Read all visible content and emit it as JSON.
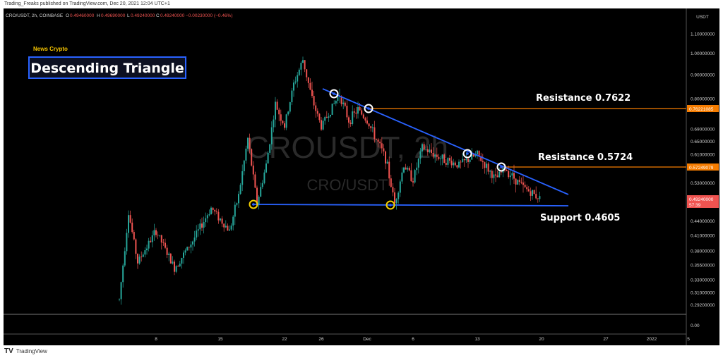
{
  "header": {
    "published_text": "Trading_Freaks published on TradingView.com, Dec 20, 2021 12:04 UTC+1"
  },
  "legend": {
    "symbol_line": "CRO/USDT, 2h, COINBASE",
    "o_label": "O",
    "o_value": "0.49460000",
    "h_label": "H",
    "h_value": "0.49690000",
    "l_label": "L",
    "l_value": "0.49240000",
    "c_label": "C",
    "c_value": "0.49240000",
    "change": "−0.00230000 (−0.46%)"
  },
  "annotations": {
    "source": "News Crypto",
    "pattern_title": "Descending Triangle",
    "resistance1": "Resistance 0.7622",
    "resistance2": "Resistance 0.5724",
    "support": "Support 0.4605"
  },
  "watermark": {
    "big": "CROUSDT, 2h",
    "small": "CRO/USDT"
  },
  "price_axis": {
    "currency": "USDT",
    "ticks": [
      "1.10000000",
      "1.00000000",
      "0.90000000",
      "0.80000000",
      "0.69000000",
      "0.65000000",
      "0.61000000",
      "0.53000000",
      "0.44000000",
      "0.41000000",
      "0.38000000",
      "0.35500000",
      "0.33000000",
      "0.31000000",
      "0.29200000"
    ],
    "zero_label": "0.00",
    "last_price_label": "0.49240000",
    "countdown": "57:39",
    "resistance1_label": "0.76221085",
    "resistance2_label": "0.57249079"
  },
  "time_axis": {
    "ticks": [
      "8",
      "15",
      "22",
      "26",
      "Dec",
      "6",
      "13",
      "20",
      "27",
      "2022",
      "5"
    ]
  },
  "footer": {
    "brand": "TradingView"
  },
  "colors": {
    "background": "#000000",
    "up": "#26a69a",
    "down": "#ef5350",
    "trendline": "#2962ff",
    "resistance": "#f57c00",
    "support_marker": "#f5d000",
    "text": "#ffffff",
    "accent_yellow": "#f5c400"
  },
  "chart_data": {
    "type": "candlestick",
    "pattern": "Descending Triangle",
    "y_scale": "log",
    "resistance_levels": [
      0.7622,
      0.5724
    ],
    "support_level": 0.4605,
    "last_price": 0.4924,
    "path": [
      [
        "Nov 4",
        0.3
      ],
      [
        "Nov 5",
        0.46
      ],
      [
        "Nov 6",
        0.36
      ],
      [
        "Nov 8",
        0.42
      ],
      [
        "Nov 10",
        0.35
      ],
      [
        "Nov 12",
        0.4
      ],
      [
        "Nov 14",
        0.47
      ],
      [
        "Nov 16",
        0.42
      ],
      [
        "Nov 17",
        0.5
      ],
      [
        "Nov 18",
        0.66
      ],
      [
        "Nov 19",
        0.48
      ],
      [
        "Nov 20",
        0.58
      ],
      [
        "Nov 21",
        0.78
      ],
      [
        "Nov 22",
        0.7
      ],
      [
        "Nov 23",
        0.86
      ],
      [
        "Nov 24",
        0.97
      ],
      [
        "Nov 25",
        0.8
      ],
      [
        "Nov 26",
        0.7
      ],
      [
        "Nov 28",
        0.82
      ],
      [
        "Nov 29",
        0.72
      ],
      [
        "Nov 30",
        0.76
      ],
      [
        "Dec 1",
        0.72
      ],
      [
        "Dec 3",
        0.6
      ],
      [
        "Dec 4",
        0.48
      ],
      [
        "Dec 5",
        0.58
      ],
      [
        "Dec 6",
        0.54
      ],
      [
        "Dec 7",
        0.63
      ],
      [
        "Dec 9",
        0.6
      ],
      [
        "Dec 11",
        0.58
      ],
      [
        "Dec 13",
        0.61
      ],
      [
        "Dec 15",
        0.54
      ],
      [
        "Dec 16",
        0.57
      ],
      [
        "Dec 18",
        0.52
      ],
      [
        "Dec 20",
        0.49
      ]
    ],
    "touch_points_resistance": [
      [
        "Nov 28",
        0.82
      ],
      [
        "Nov 30",
        0.76
      ],
      [
        "Dec 13",
        0.61
      ],
      [
        "Dec 16",
        0.57
      ]
    ],
    "touch_points_support": [
      [
        "Nov 19",
        0.4605
      ],
      [
        "Dec 4",
        0.4605
      ]
    ]
  }
}
